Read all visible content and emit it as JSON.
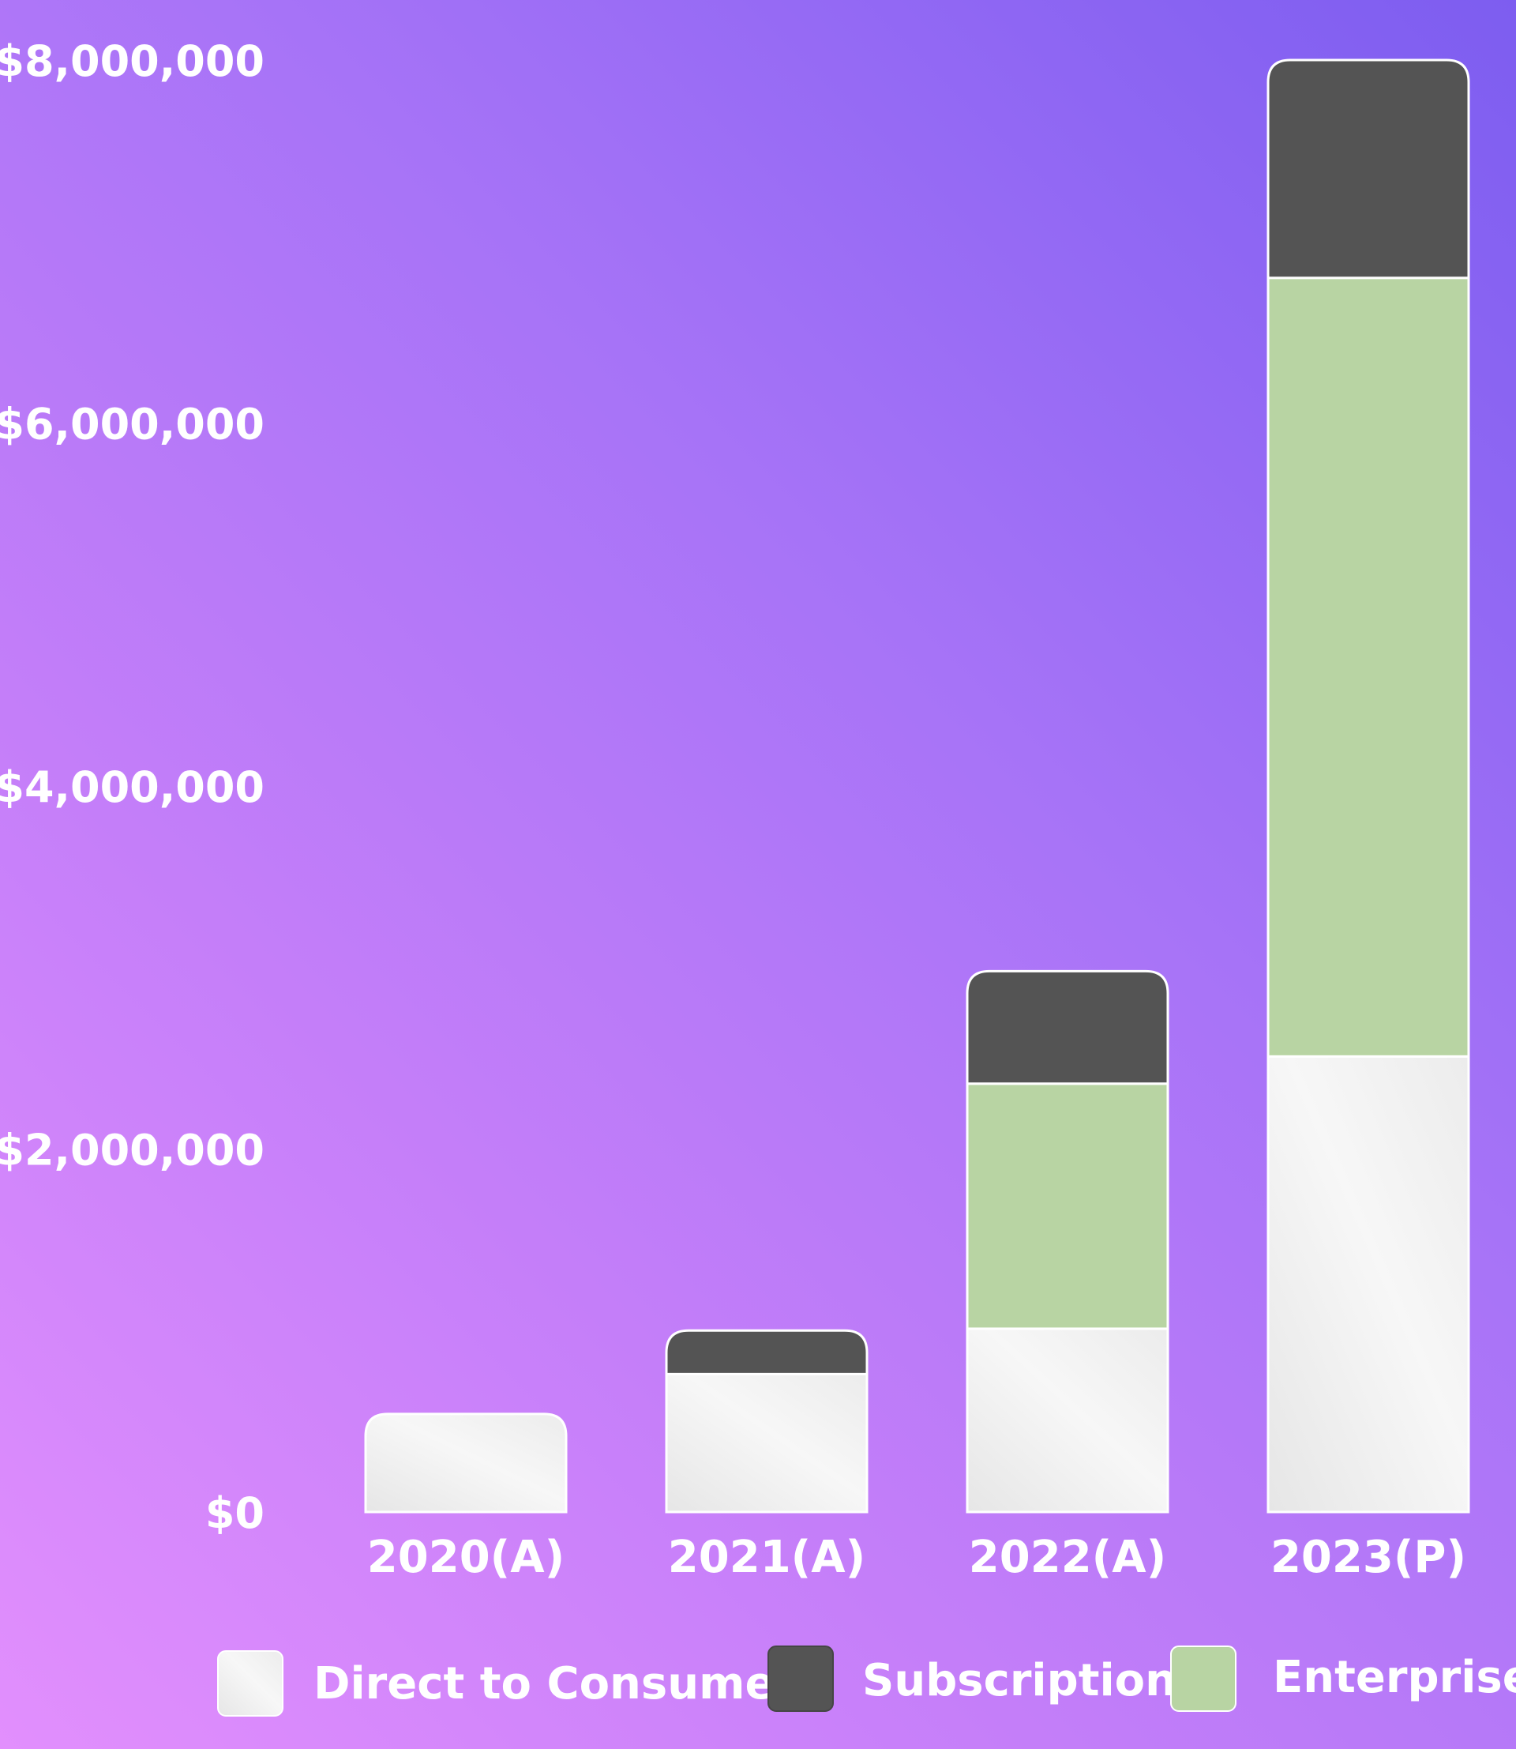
{
  "chart_data": {
    "type": "bar",
    "stacked": true,
    "categories": [
      "2020(A)",
      "2021(A)",
      "2022(A)",
      "2023(P)"
    ],
    "series": [
      {
        "name": "Direct to Consumer",
        "values": [
          540000,
          760000,
          1010000,
          2510000
        ]
      },
      {
        "name": "Enterprise",
        "values": [
          0,
          0,
          1350000,
          4290000
        ]
      },
      {
        "name": "Subscription",
        "values": [
          0,
          240000,
          620000,
          1200000
        ]
      }
    ],
    "y_ticks": [
      0,
      2000000,
      4000000,
      6000000,
      8000000
    ],
    "y_tick_labels": [
      "$0",
      "$2,000,000",
      "$4,000,000",
      "$6,000,000",
      "$8,000,000"
    ],
    "ylim": [
      0,
      8000000
    ],
    "grid": false,
    "legend": {
      "position": "bottom",
      "entries": [
        "Direct to Consumer",
        "Subscription",
        "Enterprise"
      ]
    },
    "colors": {
      "Direct to Consumer": "#f2f2f2",
      "Subscription": "#545454",
      "Enterprise": "#b8d4a3"
    }
  }
}
